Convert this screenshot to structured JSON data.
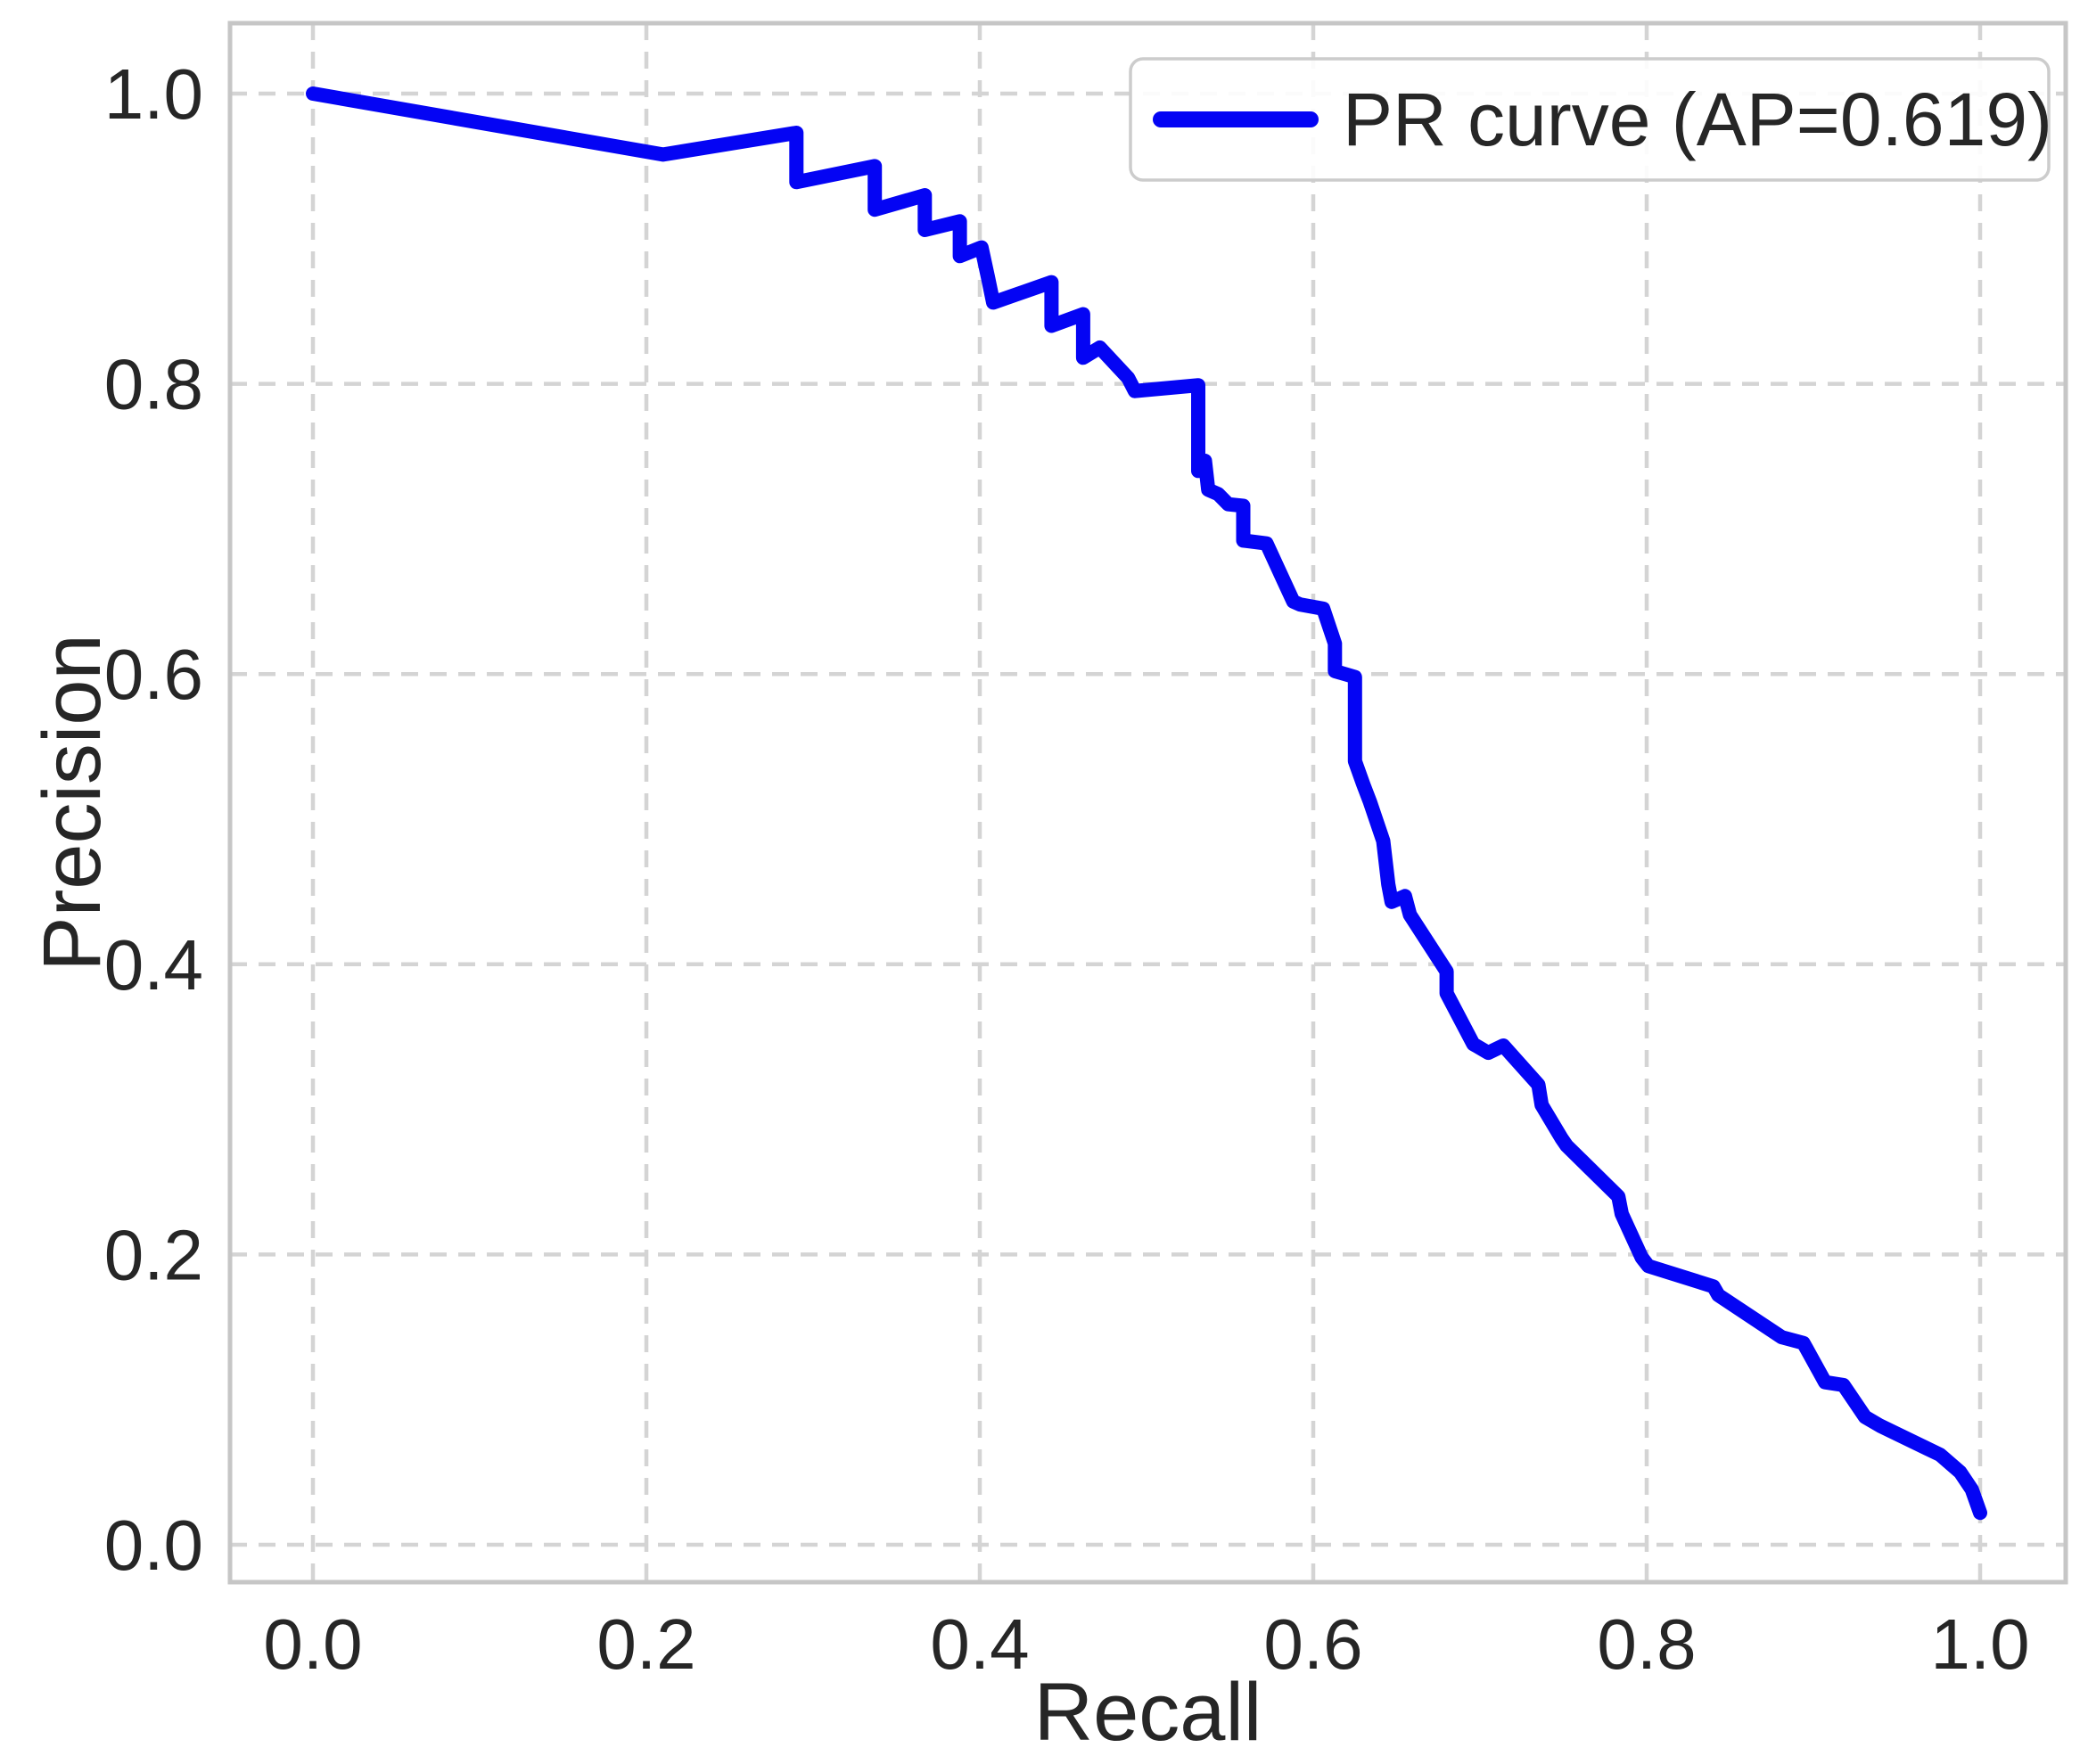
{
  "chart_data": {
    "type": "line",
    "title": "",
    "xlabel": "Recall",
    "ylabel": "Precision",
    "xlim": [
      -0.05,
      1.051
    ],
    "ylim": [
      -0.026,
      1.049
    ],
    "grid": {
      "visible": true,
      "style": "dashed"
    },
    "legend": {
      "position": "upper right",
      "entries": [
        {
          "label": "PR curve (AP=0.619)",
          "color": "#0404f4"
        }
      ]
    },
    "xticks": {
      "values": [
        0.0,
        0.2,
        0.4,
        0.6,
        0.8,
        1.0
      ],
      "labels": [
        "0.0",
        "0.2",
        "0.4",
        "0.6",
        "0.8",
        "1.0"
      ]
    },
    "yticks": {
      "values": [
        0.0,
        0.2,
        0.4,
        0.6,
        0.8,
        1.0
      ],
      "labels": [
        "0.0",
        "0.2",
        "0.4",
        "0.6",
        "0.8",
        "1.0"
      ]
    },
    "series": [
      {
        "name": "PR curve (AP=0.619)",
        "color": "#0404f4",
        "ap": 0.619,
        "points": [
          [
            0.0,
            1.0
          ],
          [
            0.21,
            0.958
          ],
          [
            0.29,
            0.973
          ],
          [
            0.29,
            0.939
          ],
          [
            0.337,
            0.95
          ],
          [
            0.337,
            0.92
          ],
          [
            0.367,
            0.93
          ],
          [
            0.367,
            0.906
          ],
          [
            0.388,
            0.912
          ],
          [
            0.388,
            0.888
          ],
          [
            0.401,
            0.894
          ],
          [
            0.405,
            0.873
          ],
          [
            0.408,
            0.856
          ],
          [
            0.443,
            0.87
          ],
          [
            0.443,
            0.84
          ],
          [
            0.462,
            0.848
          ],
          [
            0.462,
            0.818
          ],
          [
            0.472,
            0.825
          ],
          [
            0.489,
            0.804
          ],
          [
            0.493,
            0.795
          ],
          [
            0.531,
            0.799
          ],
          [
            0.531,
            0.74
          ],
          [
            0.535,
            0.747
          ],
          [
            0.537,
            0.727
          ],
          [
            0.543,
            0.724
          ],
          [
            0.549,
            0.717
          ],
          [
            0.558,
            0.716
          ],
          [
            0.558,
            0.692
          ],
          [
            0.572,
            0.69
          ],
          [
            0.582,
            0.665
          ],
          [
            0.588,
            0.65
          ],
          [
            0.592,
            0.648
          ],
          [
            0.606,
            0.645
          ],
          [
            0.613,
            0.621
          ],
          [
            0.613,
            0.602
          ],
          [
            0.625,
            0.598
          ],
          [
            0.625,
            0.54
          ],
          [
            0.63,
            0.524
          ],
          [
            0.634,
            0.512
          ],
          [
            0.642,
            0.485
          ],
          [
            0.645,
            0.455
          ],
          [
            0.647,
            0.443
          ],
          [
            0.655,
            0.447
          ],
          [
            0.658,
            0.434
          ],
          [
            0.68,
            0.395
          ],
          [
            0.68,
            0.38
          ],
          [
            0.696,
            0.345
          ],
          [
            0.705,
            0.339
          ],
          [
            0.714,
            0.344
          ],
          [
            0.735,
            0.317
          ],
          [
            0.737,
            0.303
          ],
          [
            0.749,
            0.28
          ],
          [
            0.752,
            0.275
          ],
          [
            0.783,
            0.24
          ],
          [
            0.785,
            0.228
          ],
          [
            0.797,
            0.198
          ],
          [
            0.801,
            0.192
          ],
          [
            0.84,
            0.178
          ],
          [
            0.843,
            0.172
          ],
          [
            0.881,
            0.143
          ],
          [
            0.894,
            0.139
          ],
          [
            0.907,
            0.112
          ],
          [
            0.918,
            0.11
          ],
          [
            0.931,
            0.088
          ],
          [
            0.94,
            0.082
          ],
          [
            0.976,
            0.062
          ],
          [
            0.988,
            0.05
          ],
          [
            0.995,
            0.038
          ],
          [
            1.0,
            0.022
          ]
        ]
      }
    ],
    "colors": {
      "line": "#0404f4",
      "grid": "#d4d4d4",
      "spine": "#c6c6c6",
      "text": "#262626",
      "background": "#ffffff",
      "legend_border": "#cccccc"
    }
  }
}
